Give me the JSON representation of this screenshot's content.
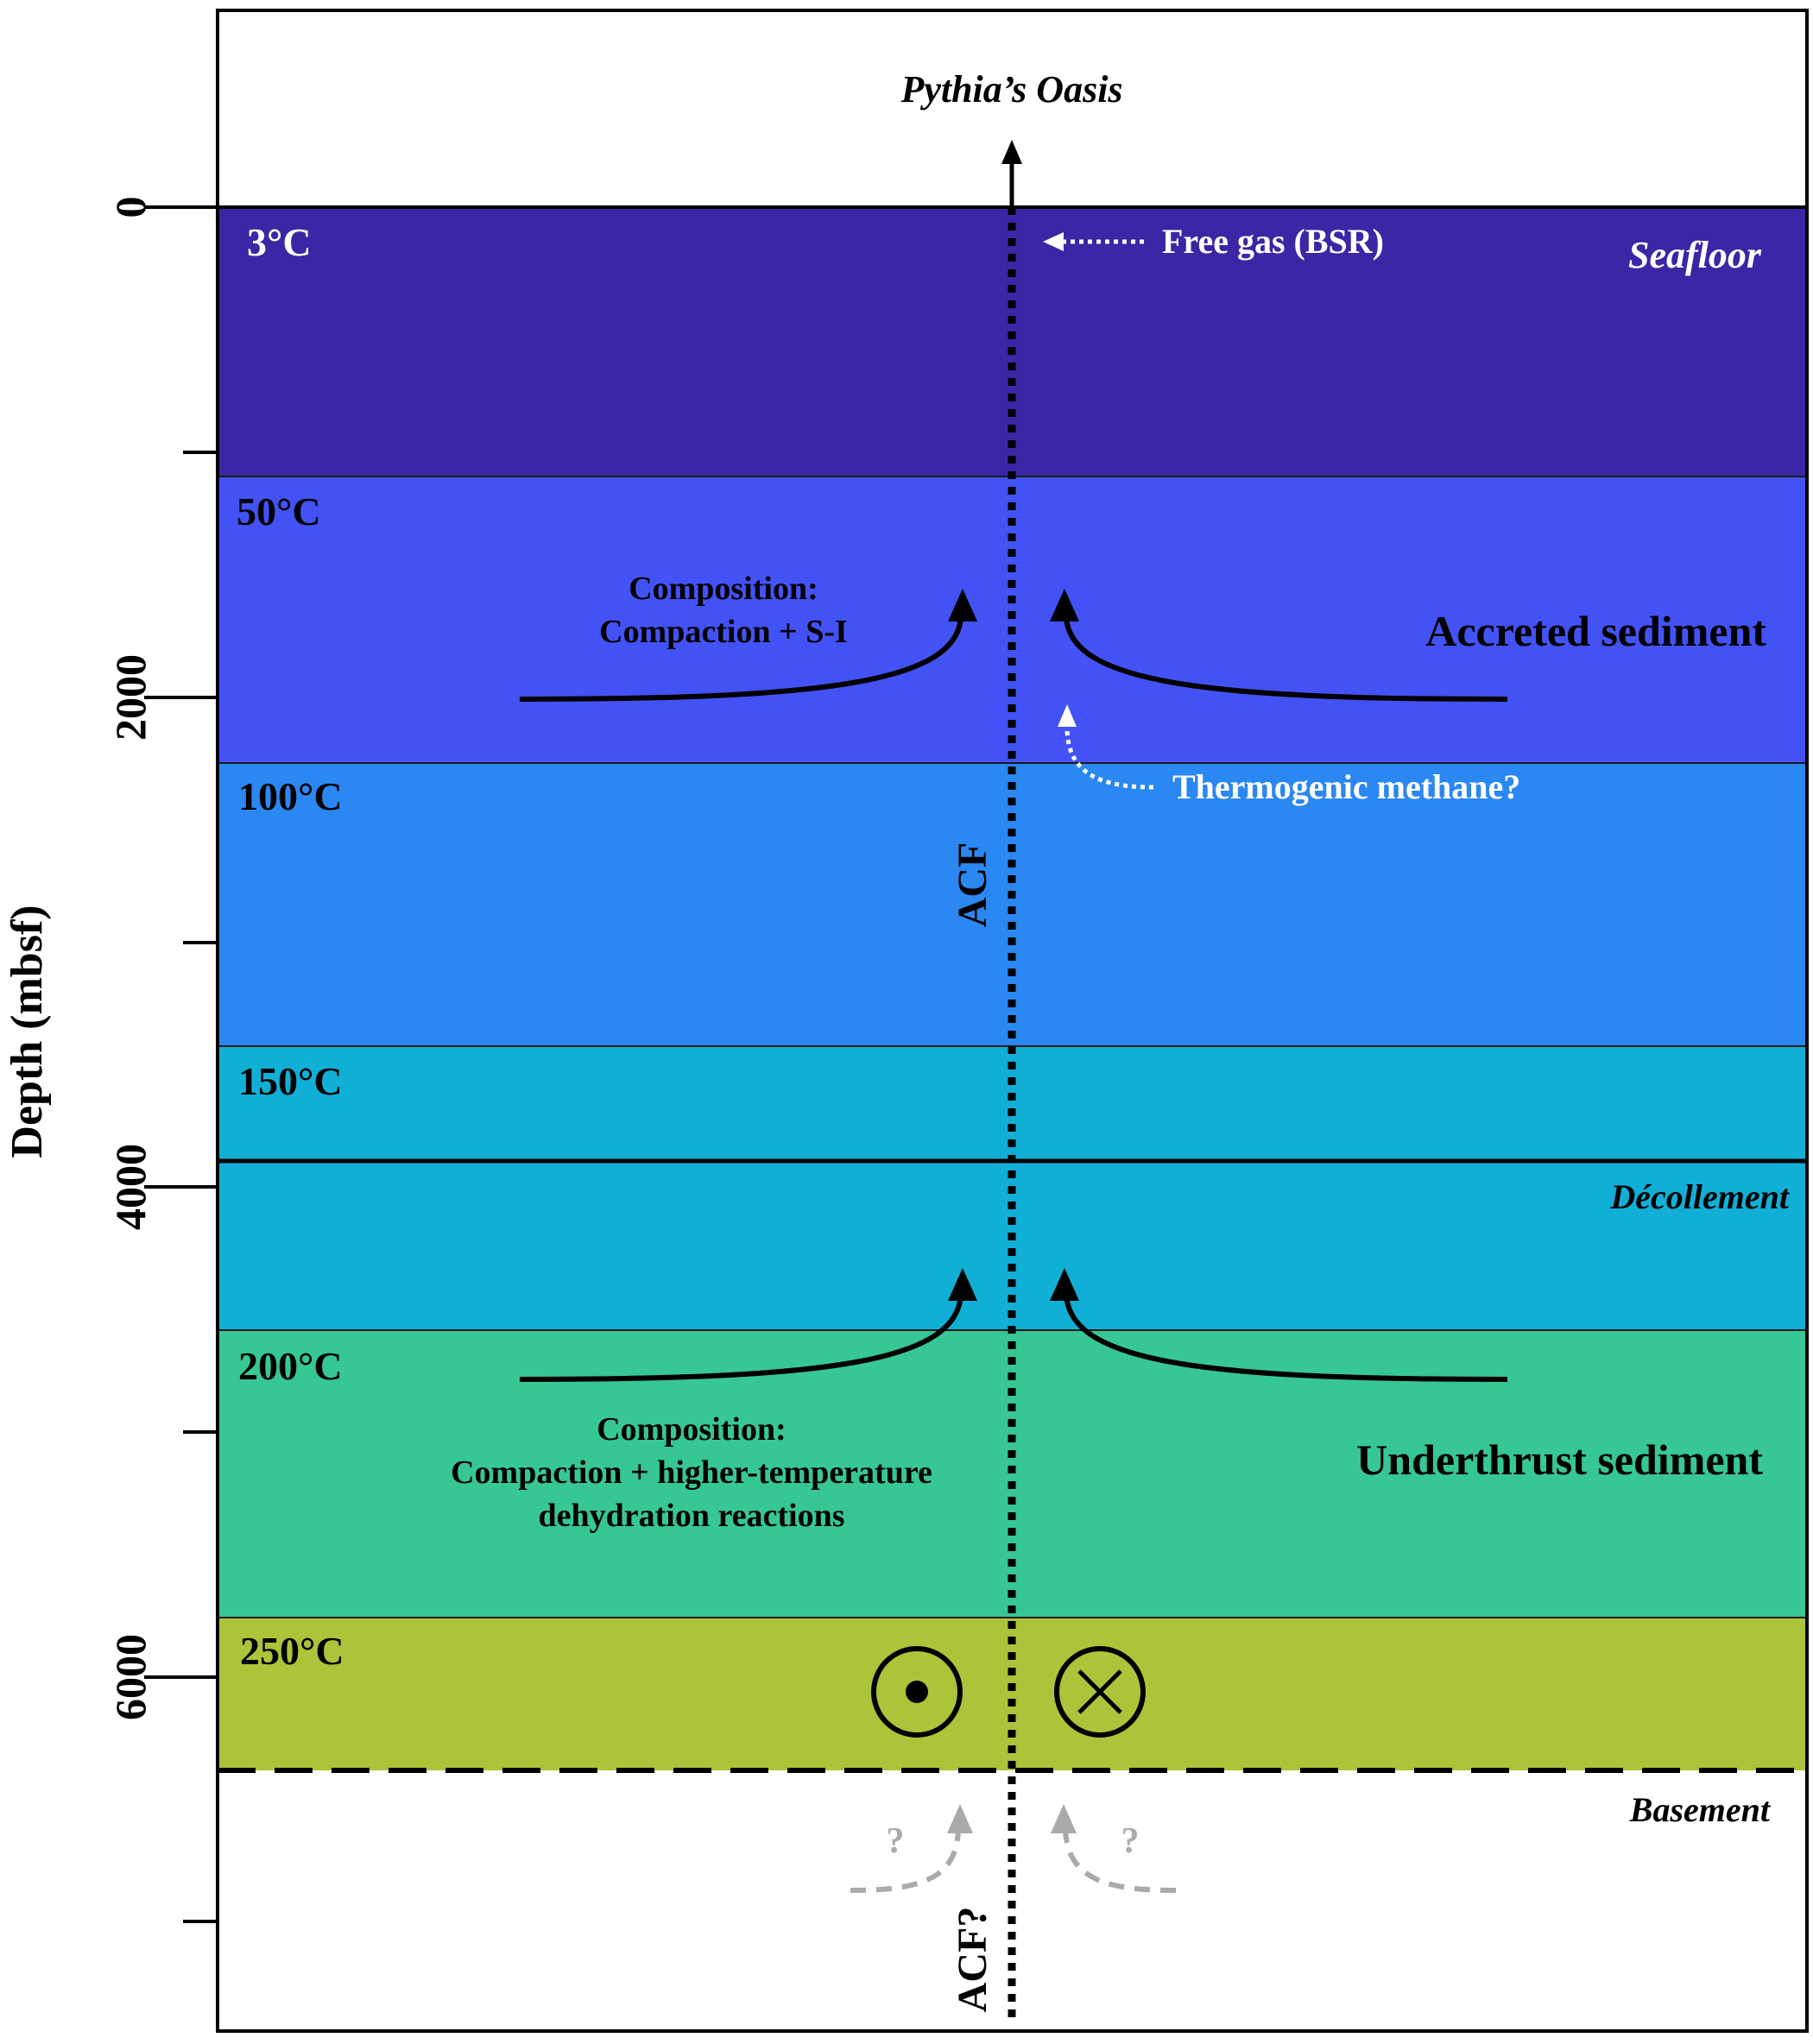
{
  "header": {
    "site_label": "Pythia’s Oasis"
  },
  "axis": {
    "title": "Depth (mbsf)",
    "ticks": [
      "0",
      "2000",
      "4000",
      "6000"
    ]
  },
  "colors": {
    "zone_3c": "#3b26a5",
    "zone_50c": "#4352f4",
    "zone_100c": "#2b87f1",
    "zone_150c": "#11afd6",
    "zone_200c": "#37c695",
    "zone_250c": "#abc439"
  },
  "temperatures": {
    "t3": "3°C",
    "t50": "50°C",
    "t100": "100°C",
    "t150": "150°C",
    "t200": "200°C",
    "t250": "250°C"
  },
  "boundaries": {
    "seafloor": "Seafloor",
    "decollement": "Décollement",
    "basement": "Basement"
  },
  "units": {
    "accreted": "Accreted sediment",
    "underthrust": "Underthrust sediment"
  },
  "annotations": {
    "free_gas": "Free gas (BSR)",
    "thermogenic": "Thermogenic methane?",
    "acf": "ACF",
    "acf_query": "ACF?",
    "question": "?"
  },
  "composition_upper": {
    "line1": "Composition:",
    "line2": "Compaction + S-I"
  },
  "composition_lower": {
    "line1": "Composition:",
    "line2": "Compaction + higher-temperature",
    "line3": "dehydration reactions"
  }
}
